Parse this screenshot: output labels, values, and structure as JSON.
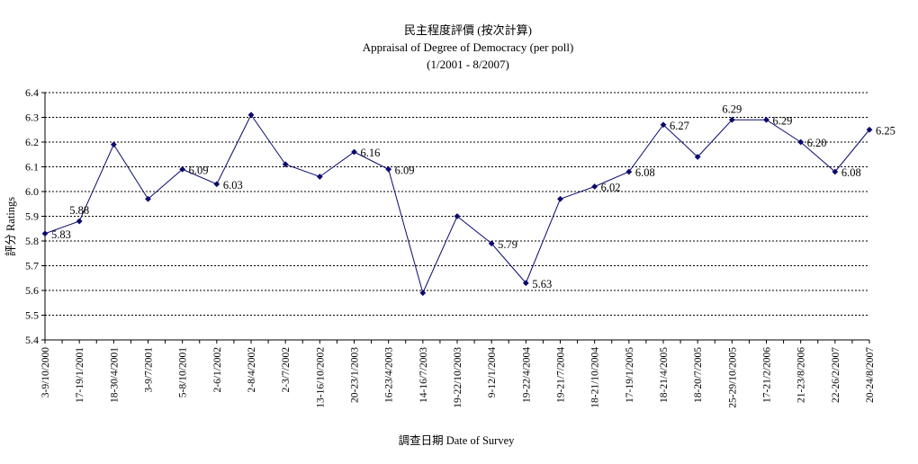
{
  "chart_data": {
    "type": "line",
    "title_zh": "民主程度評價 (按次計算)",
    "title_en": "Appraisal of Degree of Democracy (per poll)",
    "subtitle": "(1/2001 - 8/2007)",
    "xlabel": "調查日期 Date of Survey",
    "ylabel": "評分 Ratings",
    "ylim": [
      5.4,
      6.4
    ],
    "ytick_step": 0.1,
    "yticks": [
      "5.4",
      "5.5",
      "5.6",
      "5.7",
      "5.8",
      "5.9",
      "6.0",
      "6.1",
      "6.2",
      "6.3",
      "6.4"
    ],
    "grid": "horizontal-dashed",
    "line_color": "#0a0a6e",
    "categories": [
      "3-9/10/2000",
      "",
      "17-19/1/2001",
      "",
      "18-30/4/2001",
      "",
      "3-9/7/2001",
      "",
      "5-8/10/2001",
      "",
      "2-6/1/2002",
      "",
      "2-8/4/2002",
      "",
      "2-3/7/2002",
      "",
      "13-16/10/2002",
      "",
      "20-23/1/2003",
      "",
      "16-23/4/2003",
      "",
      "14-16/7/2003",
      "",
      "19-22/10/2003",
      "",
      "9-12/1/2004",
      "",
      "19-22/4/2004",
      "",
      "19-21/7/2004",
      "",
      "18-21/10/2004",
      "",
      "17-19/1/2005",
      "",
      "18-21/4/2005",
      "",
      "18-20/7/2005",
      "",
      "25-29/10/2005",
      "",
      "17-21/2/2006",
      "",
      "21-23/8/2006",
      "",
      "22-26/2/2007",
      "",
      "20-24/8/2007"
    ],
    "values": [
      5.83,
      null,
      5.88,
      null,
      6.19,
      null,
      5.97,
      null,
      6.09,
      null,
      6.03,
      null,
      6.31,
      null,
      6.11,
      null,
      6.06,
      null,
      6.16,
      null,
      6.09,
      null,
      5.59,
      null,
      5.9,
      null,
      5.79,
      null,
      5.63,
      null,
      5.97,
      null,
      6.02,
      null,
      6.08,
      null,
      6.27,
      null,
      6.14,
      null,
      6.29,
      null,
      6.29,
      null,
      6.2,
      null,
      6.08,
      null,
      6.25
    ],
    "labels": [
      "5.83",
      "",
      "5.88",
      "",
      "",
      "",
      "",
      "",
      "6.09",
      "",
      "6.03",
      "",
      "",
      "",
      "",
      "",
      "",
      "",
      "6.16",
      "",
      "6.09",
      "",
      "",
      "",
      "",
      "",
      "5.79",
      "",
      "5.63",
      "",
      "",
      "",
      "6.02",
      "",
      "6.08",
      "",
      "6.27",
      "",
      "",
      "",
      "6.29",
      "",
      "6.29",
      "",
      "6.20",
      "",
      "6.08",
      "",
      "6.25"
    ],
    "label_positions": [
      "right",
      "",
      "above",
      "",
      "",
      "",
      "",
      "",
      "right",
      "",
      "right",
      "",
      "",
      "",
      "",
      "",
      "",
      "",
      "right",
      "",
      "right",
      "",
      "",
      "",
      "",
      "",
      "right",
      "",
      "right",
      "",
      "",
      "",
      "right",
      "",
      "right",
      "",
      "right",
      "",
      "",
      "",
      "above",
      "",
      "right",
      "",
      "right",
      "",
      "right",
      "",
      "right"
    ]
  }
}
